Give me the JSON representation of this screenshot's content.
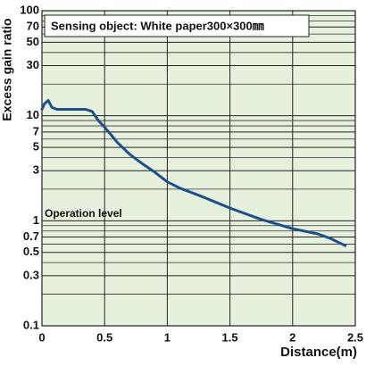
{
  "chart_data": {
    "type": "line",
    "title": "Sensing object: White paper300×300㎜",
    "annotation": "Operation level",
    "x_label": "Distance(m)",
    "y_label": "Excess gain ratio",
    "x": [
      0,
      0.02,
      0.05,
      0.08,
      0.12,
      0.2,
      0.35,
      0.4,
      0.45,
      0.5,
      0.6,
      0.7,
      0.8,
      0.9,
      1.0,
      1.1,
      1.25,
      1.5,
      1.75,
      2.0,
      2.2,
      2.3,
      2.42
    ],
    "values": [
      11.5,
      13,
      14,
      12,
      11.5,
      11.5,
      11.5,
      11,
      9,
      7.8,
      5.6,
      4.3,
      3.5,
      2.9,
      2.35,
      2.05,
      1.75,
      1.32,
      1.03,
      0.84,
      0.75,
      0.68,
      0.58
    ],
    "color": "#1f4e8c",
    "xlim": [
      0,
      2.5
    ],
    "xticks": [
      0,
      0.5,
      1,
      1.5,
      2,
      2.5
    ],
    "ylim": [
      0.1,
      100
    ],
    "yscale": "log",
    "yticks": [
      0.1,
      0.3,
      0.5,
      0.7,
      1,
      3,
      5,
      7,
      10,
      30,
      50,
      70,
      100
    ],
    "yminor": [
      0.2,
      0.4,
      0.6,
      0.8,
      0.9,
      2,
      4,
      6,
      8,
      9,
      20,
      40,
      60,
      80,
      90
    ],
    "grid": true
  }
}
